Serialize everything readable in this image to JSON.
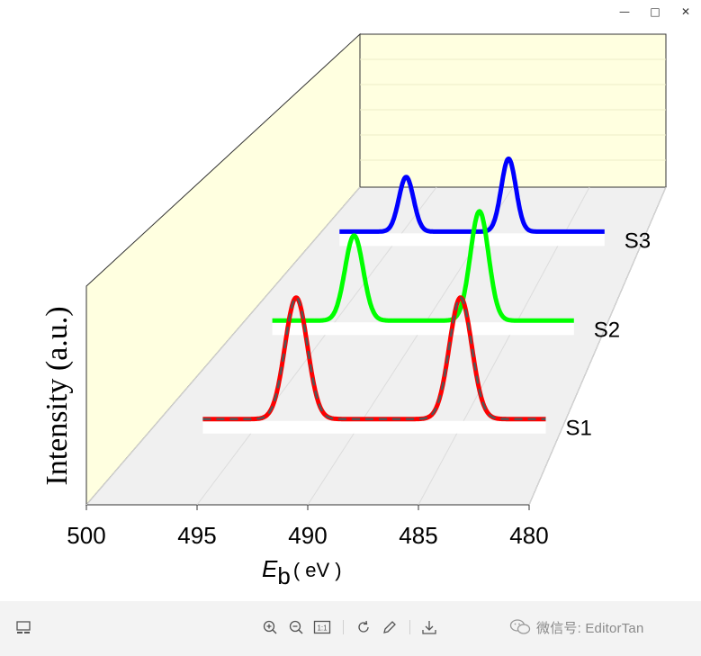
{
  "window": {
    "minimize_icon": "minimize-icon",
    "maximize_icon": "maximize-icon",
    "close_icon": "close-icon"
  },
  "chart_data": {
    "type": "line",
    "style": "3d-waterfall",
    "title": "",
    "xlabel_italic": "E",
    "xlabel_sub": "b",
    "xlabel_unit": "( eV )",
    "zlabel": "Intensity (a.u.)",
    "xlim": [
      500,
      480
    ],
    "x_ticks": [
      "500",
      "495",
      "490",
      "485",
      "480"
    ],
    "series": [
      {
        "name": "S1",
        "color": "#ff0000",
        "peaks": [
          {
            "center": 493.3,
            "height": 1.0,
            "width": 0.55
          },
          {
            "center": 485.2,
            "height": 1.0,
            "width": 0.55
          }
        ],
        "baseline_start": 497.9,
        "baseline_end": 481.0,
        "has_dashed_fit": true
      },
      {
        "name": "S2",
        "color": "#00ff00",
        "peaks": [
          {
            "center": 494.0,
            "height": 0.7,
            "width": 0.5
          },
          {
            "center": 487.1,
            "height": 0.9,
            "width": 0.5
          }
        ],
        "baseline_start": 498.5,
        "baseline_end": 481.9
      },
      {
        "name": "S3",
        "color": "#0000ff",
        "peaks": [
          {
            "center": 494.8,
            "height": 0.45,
            "width": 0.45
          },
          {
            "center": 488.5,
            "height": 0.6,
            "width": 0.45
          }
        ],
        "baseline_start": 498.9,
        "baseline_end": 482.6
      }
    ],
    "wall_color": "#ffffe0",
    "floor_color": "#f0f0f0",
    "grid": true
  },
  "toolbar": {
    "icons": [
      "gallery-icon",
      "zoom-in-icon",
      "zoom-out-icon",
      "actual-size-icon",
      "rotate-icon",
      "edit-icon",
      "download-icon"
    ],
    "actual_size_label": "1:1",
    "wechat_label": "微信号: EditorTan"
  }
}
